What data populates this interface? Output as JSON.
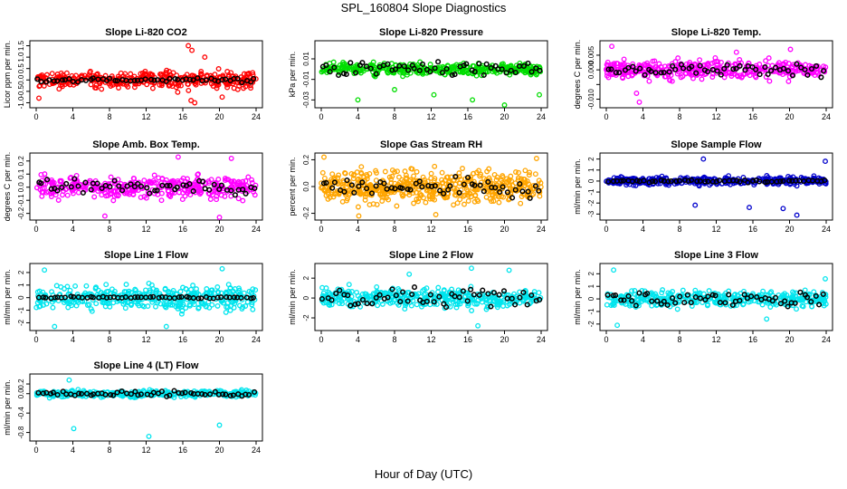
{
  "figure": {
    "title": "SPL_160804  Slope Diagnostics",
    "xlabel": "Hour of Day (UTC)"
  },
  "chart_data": [
    {
      "type": "scatter",
      "title": "Slope Li-820 CO2",
      "ylabel": "Lico r ppm per min.",
      "ylabel_text": "Licor ppm per min.",
      "xlim": [
        0,
        24
      ],
      "xticks": [
        0,
        4,
        8,
        12,
        16,
        20,
        24
      ],
      "ylim": [
        -1.1,
        1.6
      ],
      "yticks": [
        -1.0,
        -0.5,
        0.0,
        0.5,
        1.0,
        1.5
      ],
      "ytick_labels": [
        "-1.0",
        "-0.5",
        "0.0",
        "0.5",
        "1.0",
        "1.5"
      ],
      "color": "#ff0000",
      "spread": 0.35,
      "outliers": [
        [
          16.6,
          1.5
        ],
        [
          17.0,
          1.3
        ],
        [
          16.9,
          -0.9
        ],
        [
          17.3,
          -1.0
        ],
        [
          0.3,
          -0.8
        ],
        [
          20.3,
          -0.75
        ],
        [
          18.4,
          1.0
        ]
      ],
      "black_spread": 0.08
    },
    {
      "type": "scatter",
      "title": "Slope Li-820 Pressure",
      "ylabel": "kPa per min.",
      "xlim": [
        0,
        24
      ],
      "xticks": [
        0,
        4,
        8,
        12,
        16,
        20,
        24
      ],
      "ylim": [
        -0.035,
        0.025
      ],
      "yticks": [
        -0.03,
        -0.01,
        0.01
      ],
      "ytick_labels": [
        "-0.03",
        "-0.01",
        "0.01"
      ],
      "color": "#00dd00",
      "spread": 0.005,
      "outliers": [
        [
          4.0,
          -0.03
        ],
        [
          8.0,
          -0.02
        ],
        [
          12.3,
          -0.025
        ],
        [
          16.5,
          -0.03
        ],
        [
          20.0,
          -0.035
        ],
        [
          23.8,
          -0.025
        ]
      ],
      "black_spread": 0.008
    },
    {
      "type": "scatter",
      "title": "Slope Li-820 Temp.",
      "ylabel": "degrees C per min.",
      "xlim": [
        0,
        24
      ],
      "xticks": [
        0,
        4,
        8,
        12,
        16,
        20,
        24
      ],
      "ylim": [
        -0.012,
        0.009
      ],
      "yticks": [
        -0.01,
        -0.005,
        0.0,
        0.005
      ],
      "ytick_labels": [
        "-0.010",
        "",
        "0.000",
        "0.005"
      ],
      "color": "#ff00ff",
      "spread": 0.003,
      "outliers": [
        [
          0.6,
          0.008
        ],
        [
          3.3,
          -0.008
        ],
        [
          3.6,
          -0.011
        ],
        [
          20.1,
          0.007
        ],
        [
          14.2,
          0.006
        ]
      ],
      "black_spread": 0.002
    },
    {
      "type": "scatter",
      "title": "Slope Amb. Box Temp.",
      "ylabel": "degrees C per min.",
      "xlim": [
        0,
        24
      ],
      "xticks": [
        0,
        4,
        8,
        12,
        16,
        20,
        24
      ],
      "ylim": [
        -0.23,
        0.24
      ],
      "yticks": [
        -0.2,
        -0.1,
        0.0,
        0.1,
        0.2
      ],
      "ytick_labels": [
        "-0.2",
        "-0.1",
        "0.0",
        "0.1",
        "0.2"
      ],
      "color": "#ff00ff",
      "spread": 0.08,
      "outliers": [
        [
          7.5,
          -0.22
        ],
        [
          20.0,
          -0.23
        ],
        [
          15.5,
          0.23
        ],
        [
          21.3,
          0.22
        ]
      ],
      "black_spread": 0.05
    },
    {
      "type": "scatter",
      "title": "Slope Gas Stream RH",
      "ylabel": "percent per min.",
      "xlim": [
        0,
        24
      ],
      "xticks": [
        0,
        4,
        8,
        12,
        16,
        20,
        24
      ],
      "ylim": [
        -0.23,
        0.23
      ],
      "yticks": [
        -0.2,
        0.0,
        0.2
      ],
      "ytick_labels": [
        "-0.2",
        "0.0",
        "0.2"
      ],
      "color": "#ffa500",
      "spread": 0.11,
      "outliers": [
        [
          0.3,
          0.22
        ],
        [
          4.1,
          -0.22
        ],
        [
          12.5,
          -0.21
        ],
        [
          23.5,
          0.21
        ]
      ],
      "black_spread": 0.07
    },
    {
      "type": "scatter",
      "title": "Slope Sample Flow",
      "ylabel": "ml/min per min.",
      "xlim": [
        0,
        24
      ],
      "xticks": [
        0,
        4,
        8,
        12,
        16,
        20,
        24
      ],
      "ylim": [
        -3.3,
        2.3
      ],
      "yticks": [
        -3,
        -2,
        -1,
        0,
        1,
        2
      ],
      "ytick_labels": [
        "-3",
        "-2",
        "-1",
        "0",
        "1",
        "2"
      ],
      "color": "#0000cc",
      "spread": 0.35,
      "outliers": [
        [
          10.6,
          2.0
        ],
        [
          20.8,
          -3.1
        ],
        [
          19.3,
          -2.5
        ],
        [
          9.7,
          -2.2
        ],
        [
          23.9,
          1.8
        ],
        [
          15.6,
          -2.4
        ]
      ],
      "black_spread": 0.1
    },
    {
      "type": "scatter",
      "title": "Slope Line 1 Flow",
      "ylabel": "ml/min per min.",
      "xlim": [
        0,
        24
      ],
      "xticks": [
        0,
        4,
        8,
        12,
        16,
        20,
        24
      ],
      "ylim": [
        -2.4,
        2.5
      ],
      "yticks": [
        -2,
        -1,
        0,
        1,
        2
      ],
      "ytick_labels": [
        "-2",
        "-1",
        "0",
        "1",
        "2"
      ],
      "color": "#00e5ee",
      "spread": 0.9,
      "outliers": [
        [
          0.9,
          2.2
        ],
        [
          2.0,
          -2.3
        ],
        [
          14.2,
          -2.3
        ],
        [
          20.3,
          2.3
        ]
      ],
      "black_spread": 0.08
    },
    {
      "type": "scatter",
      "title": "Slope Line 2 Flow",
      "ylabel": "ml/min per min.",
      "xlim": [
        0,
        24
      ],
      "xticks": [
        0,
        4,
        8,
        12,
        16,
        20,
        24
      ],
      "ylim": [
        -3.0,
        3.2
      ],
      "yticks": [
        -2,
        0,
        2
      ],
      "ytick_labels": [
        "-2",
        "0",
        "2"
      ],
      "color": "#00e5ee",
      "spread": 0.9,
      "outliers": [
        [
          16.4,
          3.0
        ],
        [
          20.5,
          2.8
        ],
        [
          17.1,
          -2.8
        ],
        [
          9.6,
          2.4
        ]
      ],
      "black_spread": 0.9
    },
    {
      "type": "scatter",
      "title": "Slope Line 3 Flow",
      "ylabel": "ml/min per min.",
      "xlim": [
        0,
        24
      ],
      "xticks": [
        0,
        4,
        8,
        12,
        16,
        20,
        24
      ],
      "ylim": [
        -2.3,
        2.6
      ],
      "yticks": [
        -2,
        -1,
        0,
        1,
        2
      ],
      "ytick_labels": [
        "-2",
        "-1",
        "0",
        "1",
        "2"
      ],
      "color": "#00e5ee",
      "spread": 0.6,
      "outliers": [
        [
          0.8,
          2.3
        ],
        [
          1.2,
          -2.1
        ],
        [
          17.5,
          -1.6
        ],
        [
          23.9,
          1.6
        ]
      ],
      "black_spread": 0.55
    },
    {
      "type": "scatter",
      "title": "Slope Line 4 (LT) Flow",
      "ylabel": "ml/min per min.",
      "xlim": [
        0,
        24
      ],
      "xticks": [
        0,
        4,
        8,
        12,
        16,
        20,
        24
      ],
      "ylim": [
        -0.92,
        0.35
      ],
      "yticks": [
        -0.8,
        -0.4,
        0.0,
        0.2
      ],
      "ytick_labels": [
        "-0.8",
        "-0.4",
        "0.0",
        "0.2"
      ],
      "color": "#00e5ee",
      "spread": 0.06,
      "outliers": [
        [
          4.1,
          -0.72
        ],
        [
          12.3,
          -0.88
        ],
        [
          20.0,
          -0.65
        ],
        [
          3.6,
          0.28
        ]
      ],
      "black_spread": 0.05
    }
  ]
}
